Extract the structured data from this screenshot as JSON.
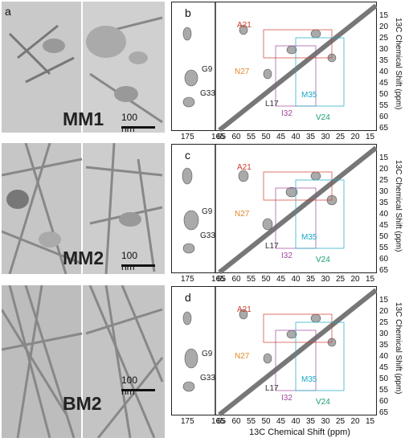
{
  "panels": [
    {
      "letter": "a",
      "em_label": "MM1",
      "scale": "100 nm",
      "nmr_letter": "b"
    },
    {
      "letter": "",
      "em_label": "MM2",
      "scale": "100 nm",
      "nmr_letter": "c"
    },
    {
      "letter": "",
      "em_label": "BM2",
      "scale": "100 nm",
      "nmr_letter": "d"
    }
  ],
  "nmr": {
    "left_ticks": [
      "175",
      "165"
    ],
    "x_ticks": [
      "65",
      "60",
      "55",
      "50",
      "45",
      "40",
      "35",
      "30",
      "25",
      "20",
      "15"
    ],
    "y_ticks": [
      "15",
      "20",
      "25",
      "30",
      "35",
      "40",
      "45",
      "50",
      "55",
      "60",
      "65"
    ],
    "y_axis_label": "13C Chemical Shift (ppm)",
    "x_axis_label": "13C Chemical Shift (ppm)",
    "residues": {
      "A21": "A21",
      "N27": "N27",
      "G9": "G9",
      "G33": "G33",
      "L17": "L17",
      "M35": "M35",
      "I32": "I32",
      "V24": "V24"
    },
    "colors": {
      "A21": "#d23a2b",
      "N27": "#e08a2b",
      "M35": "#1ba8c4",
      "I32": "#a0479a",
      "V24": "#1a9e6c",
      "L17": "#333333"
    }
  }
}
